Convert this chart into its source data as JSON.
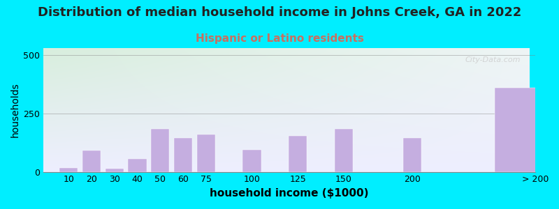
{
  "title": "Distribution of median household income in Johns Creek, GA in 2022",
  "subtitle": "Hispanic or Latino residents",
  "xlabel": "household income ($1000)",
  "ylabel": "households",
  "bar_labels": [
    "10",
    "20",
    "30",
    "40",
    "50",
    "60",
    "75",
    "100",
    "125",
    "150",
    "200",
    "> 200"
  ],
  "bar_values": [
    18,
    90,
    15,
    55,
    185,
    145,
    160,
    95,
    155,
    185,
    145,
    360
  ],
  "bar_color": "#c5aee0",
  "bar_edgecolor": "#c5aee0",
  "background_outer": "#00eeff",
  "background_plot_top_left": "#d8eedd",
  "background_plot_top_right": "#eef5f5",
  "background_plot_bottom": "#eeeeff",
  "ylim": [
    0,
    530
  ],
  "yticks": [
    0,
    250,
    500
  ],
  "watermark": "City-Data.com",
  "title_fontsize": 13,
  "subtitle_fontsize": 11,
  "subtitle_color": "#c87060",
  "xlabel_fontsize": 11,
  "ylabel_fontsize": 10,
  "tick_fontsize": 9,
  "bar_positions": [
    0,
    1,
    2,
    3,
    4,
    5,
    6,
    8,
    10,
    12,
    15,
    19
  ]
}
